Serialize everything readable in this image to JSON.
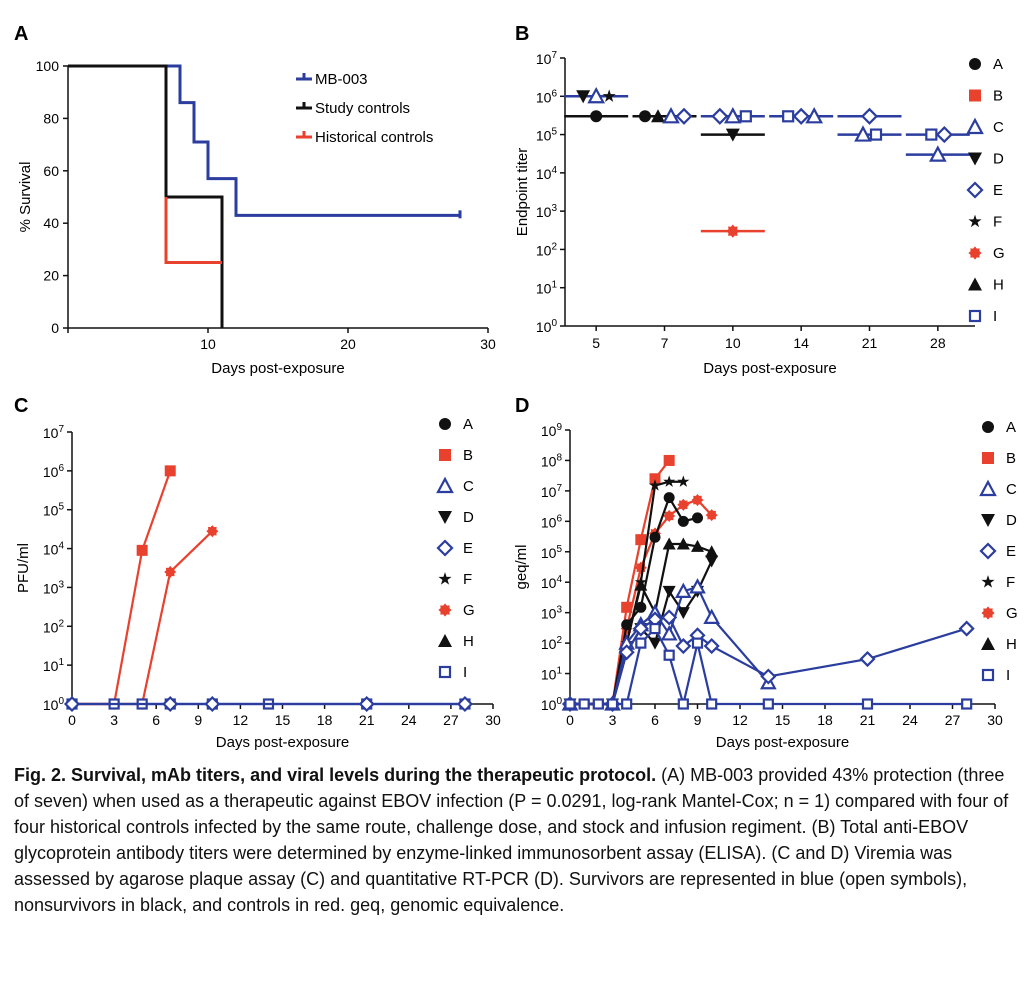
{
  "colors": {
    "survivor": "#2b3d9e",
    "nonsurvivor": "#111111",
    "control": "#e8412d"
  },
  "panels": {
    "A": {
      "letter": "A",
      "xlabel": "Days post-exposure",
      "ylabel": "% Survival",
      "xticks": [
        "10",
        "20",
        "30"
      ],
      "yticks": [
        "0",
        "20",
        "40",
        "60",
        "80",
        "100"
      ]
    },
    "B": {
      "letter": "B",
      "xlabel": "Days post-exposure",
      "ylabel": "Endpoint titer",
      "xticks": [
        "5",
        "7",
        "10",
        "14",
        "21",
        "28"
      ]
    },
    "C": {
      "letter": "C",
      "xlabel": "Days post-exposure",
      "ylabel": "PFU/ml",
      "xticks": [
        "0",
        "3",
        "6",
        "9",
        "12",
        "15",
        "18",
        "21",
        "24",
        "27",
        "30"
      ]
    },
    "D": {
      "letter": "D",
      "xlabel": "Days post-exposure",
      "ylabel": "geq/ml",
      "xticks": [
        "0",
        "3",
        "6",
        "9",
        "12",
        "15",
        "18",
        "21",
        "24",
        "27",
        "30"
      ]
    }
  },
  "legend_letters": [
    "A",
    "B",
    "C",
    "D",
    "E",
    "F",
    "G",
    "H",
    "I"
  ],
  "chart_data": [
    {
      "panel": "A",
      "type": "line",
      "subtype": "kaplan-meier step",
      "xlim": [
        0,
        30
      ],
      "ylim": [
        0,
        100
      ],
      "series": [
        {
          "name": "MB-003",
          "color": "#2b3d9e",
          "x": [
            0,
            8,
            8,
            9,
            9,
            10,
            10,
            12,
            12,
            28
          ],
          "y": [
            100,
            100,
            86,
            86,
            71,
            71,
            57,
            57,
            43,
            43
          ]
        },
        {
          "name": "Study controls",
          "color": "#111111",
          "x": [
            0,
            7,
            7,
            11,
            11
          ],
          "y": [
            100,
            100,
            50,
            50,
            0
          ]
        },
        {
          "name": "Historical controls",
          "color": "#e8412d",
          "x": [
            7,
            7,
            7,
            11
          ],
          "y": [
            50,
            25,
            25,
            25
          ]
        }
      ]
    },
    {
      "panel": "B",
      "type": "scatter",
      "y_scale": "log",
      "ylim_exp": [
        0,
        7
      ],
      "categories": [
        "5",
        "7",
        "10",
        "14",
        "21",
        "28"
      ],
      "groups": [
        {
          "day": "5",
          "median": 1000000,
          "color": "#2b3d9e",
          "points": [
            {
              "s": "D",
              "v": 1000000
            },
            {
              "s": "C",
              "v": 1000000
            },
            {
              "s": "F",
              "v": 1000000
            }
          ]
        },
        {
          "day": "5",
          "median": 300000,
          "color": "#111111",
          "points": [
            {
              "s": "A",
              "v": 300000
            }
          ]
        },
        {
          "day": "7",
          "median": 300000,
          "color": "#111111",
          "points": [
            {
              "s": "A",
              "v": 300000
            },
            {
              "s": "H",
              "v": 300000
            },
            {
              "s": "C",
              "v": 300000
            },
            {
              "s": "E",
              "v": 300000
            }
          ]
        },
        {
          "day": "10",
          "median": 300000,
          "color": "#2b3d9e",
          "points": [
            {
              "s": "E",
              "v": 300000
            },
            {
              "s": "C",
              "v": 300000
            },
            {
              "s": "I",
              "v": 300000
            }
          ]
        },
        {
          "day": "10",
          "median": 100000,
          "color": "#111111",
          "points": [
            {
              "s": "D",
              "v": 100000
            }
          ]
        },
        {
          "day": "10",
          "median": 300,
          "color": "#e8412d",
          "points": [
            {
              "s": "G",
              "v": 300
            }
          ]
        },
        {
          "day": "14",
          "median": 300000,
          "color": "#2b3d9e",
          "points": [
            {
              "s": "I",
              "v": 300000
            },
            {
              "s": "E",
              "v": 300000
            },
            {
              "s": "C",
              "v": 300000
            }
          ]
        },
        {
          "day": "21",
          "median": 300000,
          "color": "#2b3d9e",
          "points": [
            {
              "s": "E",
              "v": 300000
            }
          ]
        },
        {
          "day": "21",
          "median": 100000,
          "color": "#2b3d9e",
          "points": [
            {
              "s": "C",
              "v": 100000
            },
            {
              "s": "I",
              "v": 100000
            }
          ]
        },
        {
          "day": "28",
          "median": 100000,
          "color": "#2b3d9e",
          "points": [
            {
              "s": "I",
              "v": 100000
            },
            {
              "s": "E",
              "v": 100000
            }
          ]
        },
        {
          "day": "28",
          "median": 30000,
          "color": "#2b3d9e",
          "points": [
            {
              "s": "C",
              "v": 30000
            }
          ]
        }
      ]
    },
    {
      "panel": "C",
      "type": "line",
      "y_scale": "log",
      "xlim": [
        0,
        30
      ],
      "ylim_exp": [
        0,
        7
      ],
      "series": [
        {
          "name": "B",
          "symbol": "B",
          "color": "#e8412d",
          "x": [
            0,
            3,
            5,
            7
          ],
          "y": [
            1,
            1,
            9000,
            1000000
          ]
        },
        {
          "name": "G",
          "symbol": "G",
          "color": "#e8412d",
          "x": [
            0,
            3,
            5,
            7,
            10
          ],
          "y": [
            1,
            1,
            1,
            2500,
            28000
          ]
        },
        {
          "name": "survivors",
          "symbol": "I",
          "color": "#2b3d9e",
          "x": [
            0,
            3,
            5,
            7,
            10,
            14,
            21,
            28
          ],
          "y": [
            1,
            1,
            1,
            1,
            1,
            1,
            1,
            1
          ]
        },
        {
          "name": "survivors-e",
          "symbol": "E",
          "color": "#2b3d9e",
          "x": [
            0,
            7,
            10,
            21,
            28
          ],
          "y": [
            1,
            1,
            1,
            1,
            1
          ]
        }
      ]
    },
    {
      "panel": "D",
      "type": "line",
      "y_scale": "log",
      "xlim": [
        0,
        30
      ],
      "ylim_exp": [
        0,
        9
      ],
      "series": [
        {
          "name": "B",
          "symbol": "B",
          "color": "#e8412d",
          "x": [
            0,
            1,
            2,
            3,
            4,
            5,
            6,
            7
          ],
          "y": [
            1,
            1,
            1,
            1,
            1500,
            250000,
            25000000,
            100000000
          ]
        },
        {
          "name": "G",
          "symbol": "G",
          "color": "#e8412d",
          "x": [
            0,
            1,
            2,
            3,
            4,
            5,
            6,
            7,
            8,
            9,
            10
          ],
          "y": [
            1,
            1,
            1,
            1,
            300,
            30000,
            400000,
            1500000,
            3500000,
            5000000,
            1600000
          ]
        },
        {
          "name": "F",
          "symbol": "F",
          "color": "#111111",
          "x": [
            0,
            3,
            4,
            5,
            6,
            7,
            8
          ],
          "y": [
            1,
            1,
            100,
            10000,
            15000000,
            20000000,
            20000000
          ]
        },
        {
          "name": "A",
          "symbol": "A",
          "color": "#111111",
          "x": [
            0,
            3,
            4,
            5,
            6,
            7,
            8,
            9
          ],
          "y": [
            1,
            1,
            400,
            1500,
            300000,
            6000000,
            1000000,
            1300000
          ]
        },
        {
          "name": "H",
          "symbol": "H",
          "color": "#111111",
          "x": [
            0,
            3,
            4,
            5,
            6,
            7,
            8,
            9,
            10
          ],
          "y": [
            1,
            1,
            100,
            8000,
            1000,
            180000,
            180000,
            150000,
            100000
          ]
        },
        {
          "name": "D",
          "symbol": "D",
          "color": "#111111",
          "x": [
            0,
            3,
            4,
            5,
            6,
            7,
            8,
            9,
            10
          ],
          "y": [
            1,
            1,
            50,
            300,
            100,
            5000,
            1000,
            5000,
            50000
          ]
        },
        {
          "name": "C",
          "symbol": "C",
          "color": "#2b3d9e",
          "x": [
            0,
            3,
            4,
            5,
            6,
            7,
            8,
            9,
            10,
            14
          ],
          "y": [
            1,
            1,
            100,
            400,
            1000,
            200,
            5000,
            7000,
            700,
            5
          ]
        },
        {
          "name": "E",
          "symbol": "E",
          "color": "#2b3d9e",
          "x": [
            0,
            3,
            4,
            5,
            6,
            7,
            8,
            9,
            10,
            14,
            21,
            28
          ],
          "y": [
            1,
            1,
            50,
            300,
            600,
            700,
            80,
            180,
            80,
            8,
            30,
            300
          ]
        },
        {
          "name": "I",
          "symbol": "I",
          "color": "#2b3d9e",
          "x": [
            0,
            1,
            2,
            3,
            4,
            5,
            6,
            7,
            8,
            9,
            10,
            14,
            21,
            28
          ],
          "y": [
            1,
            1,
            1,
            1,
            1,
            100,
            300,
            40,
            1,
            100,
            1,
            1,
            1,
            1
          ]
        }
      ]
    }
  ],
  "caption": {
    "title": "Fig. 2. Survival, mAb titers, and viral levels during the therapeutic protocol.",
    "body": "(A) MB-003 provided 43% protection (three of seven) when used as a therapeutic against EBOV infection (P = 0.0291, log-rank Mantel-Cox; n = 1) compared with four of four historical controls infected by the same route, challenge dose, and stock and infusion regiment. (B) Total anti-EBOV glycoprotein antibody titers were determined by enzyme-linked immunosorbent assay (ELISA). (C and D) Viremia was assessed by agarose plaque assay (C) and quantitative RT-PCR (D). Survivors are represented in blue (open symbols), nonsurvivors in black, and controls in red. geq, genomic equivalence."
  }
}
